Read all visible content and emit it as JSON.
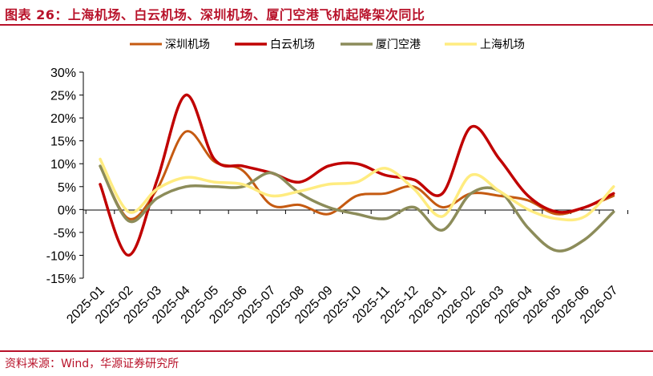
{
  "header": {
    "title": "图表 26：上海机场、白云机场、深圳机场、厦门空港飞机起降架次同比"
  },
  "footer": {
    "source": "资料来源：Wind，华源证券研究所"
  },
  "chart_data": {
    "type": "line",
    "title": "图表 26：上海机场、白云机场、深圳机场、厦门空港飞机起降架次同比",
    "xlabel": "",
    "ylabel": "",
    "ylim": [
      -15,
      30
    ],
    "y_ticks": [
      -15,
      -10,
      -5,
      0,
      5,
      10,
      15,
      20,
      25,
      30
    ],
    "y_tick_labels": [
      "-15%",
      "-10%",
      "-5%",
      "0%",
      "5%",
      "10%",
      "15%",
      "20%",
      "25%",
      "30%"
    ],
    "legend_position": "top",
    "grid": false,
    "x_tick_labels": [
      "2025-01",
      "2025-02",
      "2025-03",
      "2025-04",
      "2025-05",
      "2025-06",
      "2025-07",
      "2025-08",
      "2025-09",
      "2025-10",
      "2025-11",
      "2025-12",
      "2026-01",
      "2026-02",
      "2026-03",
      "2026-04",
      "2026-05",
      "2026-06",
      "2026-07"
    ],
    "x": [
      "2025-01",
      "2025-02",
      "2025-03",
      "2025-04",
      "2025-05",
      "2025-06",
      "2025-07",
      "2025-08",
      "2025-09",
      "2025-10",
      "2025-11",
      "2025-12",
      "2026-01",
      "2026-02",
      "2026-03",
      "2026-04",
      "2026-05",
      "2026-06",
      "2026-07"
    ],
    "series": [
      {
        "name": "深圳机场",
        "color": "#c55a11",
        "width": 3,
        "values": [
          9.5,
          -2.0,
          4.5,
          17.0,
          10.5,
          8.5,
          1.0,
          1.0,
          -1.0,
          3.0,
          3.5,
          5.0,
          0.5,
          3.5,
          3.0,
          2.0,
          -1.0,
          0.5,
          3.0
        ]
      },
      {
        "name": "白云机场",
        "color": "#c00000",
        "width": 3.5,
        "values": [
          5.5,
          -10.0,
          6.5,
          25.0,
          11.0,
          9.5,
          8.0,
          6.0,
          9.5,
          10.0,
          7.5,
          6.5,
          3.5,
          18.0,
          11.0,
          3.0,
          -0.5,
          0.5,
          3.5
        ]
      },
      {
        "name": "厦门空港",
        "color": "#8c8c5a",
        "width": 3.5,
        "values": [
          9.5,
          -2.5,
          2.5,
          5.0,
          5.0,
          5.0,
          8.0,
          3.5,
          0.5,
          -1.0,
          -2.0,
          0.5,
          -4.5,
          3.5,
          4.0,
          -4.0,
          -9.0,
          -6.5,
          -0.5
        ]
      },
      {
        "name": "上海机场",
        "color": "#ffec80",
        "width": 3.5,
        "values": [
          11.0,
          -0.5,
          4.5,
          7.0,
          6.0,
          5.5,
          3.0,
          4.0,
          5.5,
          6.0,
          9.0,
          4.5,
          -1.5,
          7.5,
          4.0,
          0.0,
          -2.0,
          -1.5,
          5.0
        ]
      }
    ]
  }
}
